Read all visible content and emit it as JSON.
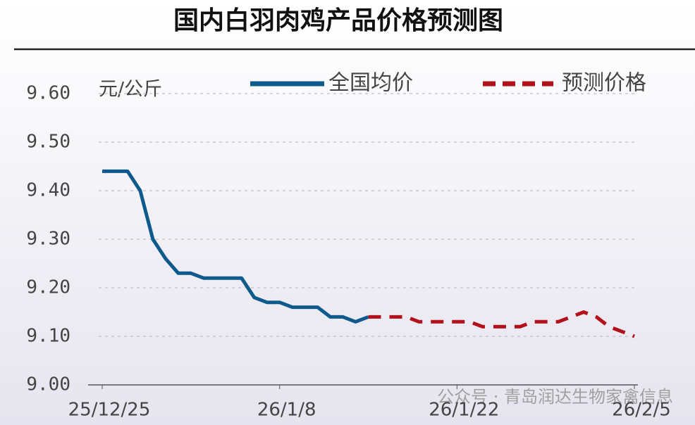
{
  "chart_data": {
    "type": "line",
    "title": "国内白羽肉鸡产品价格预测图",
    "y_label": "元/公斤",
    "categories": [
      "25/12/25",
      null,
      null,
      null,
      null,
      null,
      null,
      null,
      null,
      null,
      null,
      null,
      null,
      null,
      "26/1/8",
      null,
      null,
      null,
      null,
      null,
      null,
      null,
      null,
      null,
      null,
      null,
      null,
      null,
      "26/1/22",
      null,
      null,
      null,
      null,
      null,
      null,
      null,
      null,
      null,
      null,
      null,
      null,
      null,
      "26/2/5"
    ],
    "series": [
      {
        "name": "全国均价",
        "color": "#0e5a8c",
        "dashed": false,
        "values": [
          9.44,
          9.44,
          9.44,
          9.4,
          9.3,
          9.26,
          9.23,
          9.23,
          9.22,
          9.22,
          9.22,
          9.22,
          9.18,
          9.17,
          9.17,
          9.16,
          9.16,
          9.16,
          9.14,
          9.14,
          9.13,
          9.14,
          null,
          null,
          null,
          null,
          null,
          null,
          null,
          null,
          null,
          null,
          null,
          null,
          null,
          null,
          null,
          null,
          null,
          null,
          null,
          null,
          null
        ]
      },
      {
        "name": "预测价格",
        "color": "#b0111b",
        "dashed": true,
        "values": [
          null,
          null,
          null,
          null,
          null,
          null,
          null,
          null,
          null,
          null,
          null,
          null,
          null,
          null,
          null,
          null,
          null,
          null,
          null,
          null,
          null,
          9.14,
          9.14,
          9.14,
          9.14,
          9.13,
          9.13,
          9.13,
          9.13,
          9.13,
          9.12,
          9.12,
          9.12,
          9.12,
          9.13,
          9.13,
          9.13,
          9.14,
          9.15,
          9.14,
          9.12,
          9.11,
          9.1
        ]
      }
    ],
    "ylim": [
      9.0,
      9.6
    ],
    "yticks": [
      {
        "value": 9.0,
        "label": "9.00"
      },
      {
        "value": 9.1,
        "label": "9.10"
      },
      {
        "value": 9.2,
        "label": "9.20"
      },
      {
        "value": 9.3,
        "label": "9.30"
      },
      {
        "value": 9.4,
        "label": "9.40"
      },
      {
        "value": 9.5,
        "label": "9.50"
      },
      {
        "value": 9.6,
        "label": "9.60"
      }
    ],
    "grid": true
  },
  "watermark": "公众号 · 青岛润达生物家禽信息"
}
